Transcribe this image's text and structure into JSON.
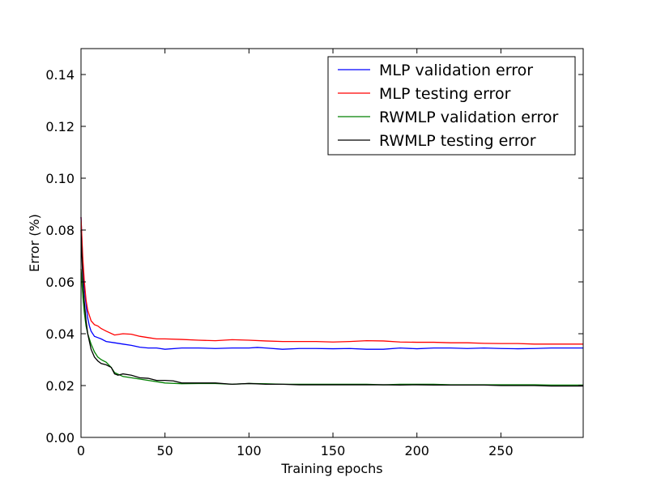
{
  "chart_data": {
    "type": "line",
    "title": "",
    "xlabel": "Training epochs",
    "ylabel": "Error (%)",
    "xlim": [
      0,
      299
    ],
    "ylim": [
      0,
      0.15
    ],
    "xticks": [
      0,
      50,
      100,
      150,
      200,
      250
    ],
    "yticks": [
      0.0,
      0.02,
      0.04,
      0.06,
      0.08,
      0.1,
      0.12,
      0.14
    ],
    "xtick_labels": [
      "0",
      "50",
      "100",
      "150",
      "200",
      "250"
    ],
    "ytick_labels": [
      "0.00",
      "0.02",
      "0.04",
      "0.06",
      "0.08",
      "0.10",
      "0.12",
      "0.14"
    ],
    "grid": false,
    "legend_position": "top-right",
    "series": [
      {
        "name": "MLP validation error",
        "color": "#0000ff",
        "points": [
          [
            0,
            0.085
          ],
          [
            1,
            0.068
          ],
          [
            2,
            0.058
          ],
          [
            3,
            0.051
          ],
          [
            4,
            0.046
          ],
          [
            5,
            0.043
          ],
          [
            6,
            0.041
          ],
          [
            8,
            0.039
          ],
          [
            10,
            0.0385
          ],
          [
            12,
            0.038
          ],
          [
            15,
            0.037
          ],
          [
            20,
            0.0365
          ],
          [
            25,
            0.036
          ],
          [
            30,
            0.0355
          ],
          [
            35,
            0.0348
          ],
          [
            40,
            0.0345
          ],
          [
            45,
            0.0345
          ],
          [
            50,
            0.034
          ],
          [
            60,
            0.0345
          ],
          [
            70,
            0.0345
          ],
          [
            80,
            0.0343
          ],
          [
            90,
            0.0345
          ],
          [
            100,
            0.0345
          ],
          [
            105,
            0.0347
          ],
          [
            110,
            0.0345
          ],
          [
            120,
            0.034
          ],
          [
            130,
            0.0343
          ],
          [
            140,
            0.0343
          ],
          [
            150,
            0.0342
          ],
          [
            160,
            0.0343
          ],
          [
            170,
            0.034
          ],
          [
            180,
            0.034
          ],
          [
            190,
            0.0345
          ],
          [
            200,
            0.0342
          ],
          [
            210,
            0.0345
          ],
          [
            220,
            0.0345
          ],
          [
            230,
            0.0343
          ],
          [
            240,
            0.0345
          ],
          [
            250,
            0.0343
          ],
          [
            260,
            0.0342
          ],
          [
            270,
            0.0343
          ],
          [
            280,
            0.0345
          ],
          [
            290,
            0.0345
          ],
          [
            299,
            0.0345
          ]
        ]
      },
      {
        "name": "MLP testing error",
        "color": "#ff0000",
        "points": [
          [
            0,
            0.085
          ],
          [
            1,
            0.07
          ],
          [
            2,
            0.06
          ],
          [
            3,
            0.053
          ],
          [
            4,
            0.049
          ],
          [
            5,
            0.047
          ],
          [
            6,
            0.045
          ],
          [
            8,
            0.0435
          ],
          [
            10,
            0.043
          ],
          [
            12,
            0.042
          ],
          [
            15,
            0.041
          ],
          [
            20,
            0.0395
          ],
          [
            25,
            0.04
          ],
          [
            30,
            0.0398
          ],
          [
            35,
            0.039
          ],
          [
            40,
            0.0385
          ],
          [
            45,
            0.038
          ],
          [
            50,
            0.038
          ],
          [
            60,
            0.0378
          ],
          [
            70,
            0.0375
          ],
          [
            80,
            0.0373
          ],
          [
            90,
            0.0377
          ],
          [
            100,
            0.0375
          ],
          [
            110,
            0.0372
          ],
          [
            120,
            0.037
          ],
          [
            130,
            0.037
          ],
          [
            140,
            0.037
          ],
          [
            150,
            0.0368
          ],
          [
            160,
            0.037
          ],
          [
            170,
            0.0373
          ],
          [
            180,
            0.0372
          ],
          [
            190,
            0.0368
          ],
          [
            200,
            0.0367
          ],
          [
            210,
            0.0367
          ],
          [
            220,
            0.0365
          ],
          [
            230,
            0.0365
          ],
          [
            240,
            0.0363
          ],
          [
            250,
            0.0362
          ],
          [
            260,
            0.0362
          ],
          [
            270,
            0.036
          ],
          [
            280,
            0.036
          ],
          [
            290,
            0.036
          ],
          [
            299,
            0.036
          ]
        ]
      },
      {
        "name": "RWMLP validation error",
        "color": "#008000",
        "points": [
          [
            0,
            0.065
          ],
          [
            1,
            0.055
          ],
          [
            2,
            0.048
          ],
          [
            3,
            0.043
          ],
          [
            4,
            0.04
          ],
          [
            5,
            0.038
          ],
          [
            6,
            0.036
          ],
          [
            8,
            0.033
          ],
          [
            10,
            0.031
          ],
          [
            12,
            0.03
          ],
          [
            15,
            0.029
          ],
          [
            18,
            0.027
          ],
          [
            20,
            0.025
          ],
          [
            25,
            0.0235
          ],
          [
            30,
            0.023
          ],
          [
            35,
            0.0225
          ],
          [
            40,
            0.022
          ],
          [
            45,
            0.0215
          ],
          [
            50,
            0.021
          ],
          [
            60,
            0.0207
          ],
          [
            70,
            0.0208
          ],
          [
            80,
            0.0208
          ],
          [
            90,
            0.0205
          ],
          [
            100,
            0.0208
          ],
          [
            110,
            0.0207
          ],
          [
            120,
            0.0205
          ],
          [
            130,
            0.0205
          ],
          [
            140,
            0.0205
          ],
          [
            150,
            0.0205
          ],
          [
            160,
            0.0205
          ],
          [
            170,
            0.0205
          ],
          [
            180,
            0.0203
          ],
          [
            190,
            0.0205
          ],
          [
            200,
            0.0205
          ],
          [
            210,
            0.0205
          ],
          [
            220,
            0.0203
          ],
          [
            230,
            0.0203
          ],
          [
            240,
            0.0203
          ],
          [
            250,
            0.0203
          ],
          [
            260,
            0.0203
          ],
          [
            270,
            0.0203
          ],
          [
            280,
            0.0202
          ],
          [
            290,
            0.0202
          ],
          [
            299,
            0.0202
          ]
        ]
      },
      {
        "name": "RWMLP testing error",
        "color": "#000000",
        "points": [
          [
            0,
            0.08
          ],
          [
            1,
            0.062
          ],
          [
            2,
            0.052
          ],
          [
            3,
            0.045
          ],
          [
            4,
            0.04
          ],
          [
            5,
            0.037
          ],
          [
            6,
            0.034
          ],
          [
            8,
            0.031
          ],
          [
            10,
            0.0295
          ],
          [
            12,
            0.0285
          ],
          [
            15,
            0.028
          ],
          [
            18,
            0.027
          ],
          [
            20,
            0.0245
          ],
          [
            22,
            0.024
          ],
          [
            25,
            0.0245
          ],
          [
            30,
            0.024
          ],
          [
            35,
            0.023
          ],
          [
            40,
            0.0228
          ],
          [
            45,
            0.022
          ],
          [
            50,
            0.022
          ],
          [
            55,
            0.0218
          ],
          [
            60,
            0.021
          ],
          [
            70,
            0.021
          ],
          [
            80,
            0.021
          ],
          [
            90,
            0.0205
          ],
          [
            100,
            0.0208
          ],
          [
            110,
            0.0205
          ],
          [
            120,
            0.0205
          ],
          [
            130,
            0.0203
          ],
          [
            140,
            0.0203
          ],
          [
            150,
            0.0203
          ],
          [
            160,
            0.0203
          ],
          [
            170,
            0.0203
          ],
          [
            180,
            0.0203
          ],
          [
            190,
            0.0202
          ],
          [
            200,
            0.0203
          ],
          [
            210,
            0.0202
          ],
          [
            220,
            0.0202
          ],
          [
            230,
            0.0202
          ],
          [
            240,
            0.0202
          ],
          [
            250,
            0.02
          ],
          [
            260,
            0.02
          ],
          [
            270,
            0.02
          ],
          [
            280,
            0.0198
          ],
          [
            290,
            0.0198
          ],
          [
            299,
            0.0198
          ]
        ]
      }
    ]
  }
}
